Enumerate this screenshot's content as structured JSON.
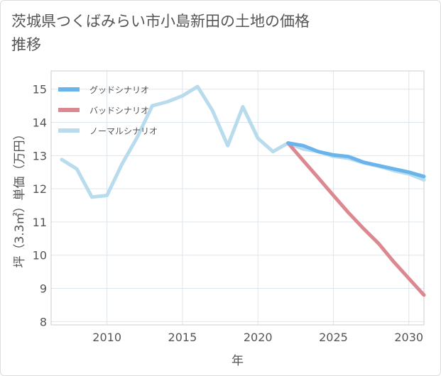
{
  "chart_data": {
    "type": "line",
    "title": "茨城県つくばみらい市小島新田の土地の価格推移",
    "xlabel": "年",
    "ylabel": "坪（3.3㎡）単価（万円）",
    "xlim": [
      2006.3,
      2031
    ],
    "ylim": [
      7.9,
      15.55
    ],
    "xticks": [
      2010,
      2015,
      2020,
      2025,
      2030
    ],
    "yticks": [
      8,
      9,
      10,
      11,
      12,
      13,
      14,
      15
    ],
    "grid": true,
    "legend_position": "top-left",
    "series": [
      {
        "name": "グッドシナリオ",
        "color": "#6ab4ec",
        "x": [
          2022,
          2023,
          2024,
          2025,
          2026,
          2027,
          2028,
          2029,
          2030,
          2031
        ],
        "values": [
          13.38,
          13.3,
          13.12,
          13.02,
          12.97,
          12.8,
          12.7,
          12.6,
          12.5,
          12.37
        ]
      },
      {
        "name": "バッドシナリオ",
        "color": "#dc8890",
        "x": [
          2022,
          2023,
          2024,
          2025,
          2026,
          2027,
          2028,
          2029,
          2030,
          2031
        ],
        "values": [
          13.38,
          12.85,
          12.33,
          11.8,
          11.28,
          10.8,
          10.35,
          9.8,
          9.3,
          8.8
        ]
      },
      {
        "name": "ノーマルシナリオ",
        "color": "#b8dcee",
        "x": [
          2007,
          2008,
          2009,
          2010,
          2011,
          2012,
          2013,
          2014,
          2015,
          2016,
          2017,
          2018,
          2019,
          2020,
          2021,
          2022,
          2023,
          2024,
          2025,
          2026,
          2027,
          2028,
          2029,
          2030,
          2031
        ],
        "values": [
          12.88,
          12.6,
          11.75,
          11.8,
          12.75,
          13.55,
          14.5,
          14.62,
          14.8,
          15.08,
          14.35,
          13.3,
          14.47,
          13.52,
          13.12,
          13.38,
          13.2,
          13.12,
          12.98,
          12.92,
          12.78,
          12.68,
          12.55,
          12.45,
          12.27
        ]
      }
    ]
  }
}
